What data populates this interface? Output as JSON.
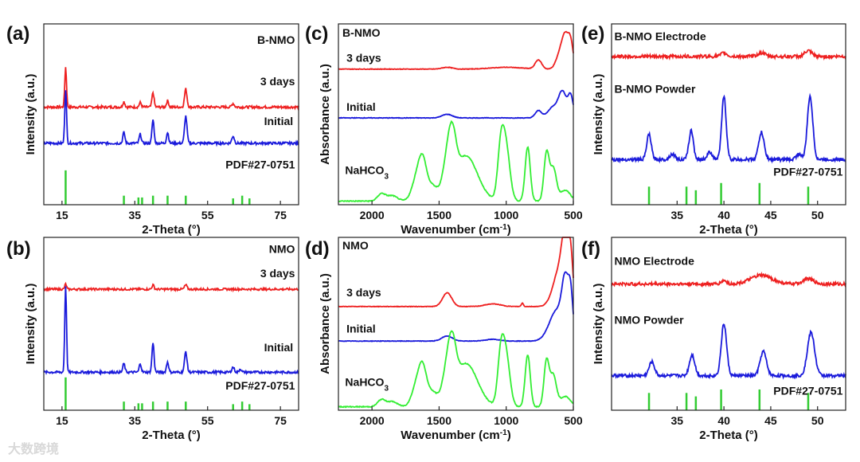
{
  "watermark": "大数跨境",
  "chart_data": [
    {
      "id": "a",
      "label": "(a)",
      "type": "line",
      "xlabel": "2-Theta (°)",
      "ylabel": "Intensity (a.u.)",
      "xlim": [
        10,
        80
      ],
      "ylim": [
        0,
        100
      ],
      "xticks": [
        15,
        35,
        55,
        75
      ],
      "reverse_x": false,
      "title": "B-NMO",
      "series": [
        {
          "name": "3 days",
          "color": "#ee2020",
          "baseline": 54,
          "noise": 0.7,
          "peaks": [
            [
              16,
              22,
              0.25
            ],
            [
              32,
              3,
              0.3
            ],
            [
              36.5,
              2.5,
              0.3
            ],
            [
              40,
              8,
              0.3
            ],
            [
              44,
              3.5,
              0.3
            ],
            [
              49,
              10,
              0.35
            ],
            [
              62,
              2,
              0.35
            ]
          ]
        },
        {
          "name": "Initial",
          "color": "#1a1adb",
          "baseline": 34,
          "noise": 0.7,
          "peaks": [
            [
              16,
              30,
              0.25
            ],
            [
              32,
              6,
              0.3
            ],
            [
              36.5,
              5,
              0.3
            ],
            [
              40,
              13,
              0.3
            ],
            [
              44,
              6,
              0.3
            ],
            [
              49,
              15,
              0.35
            ],
            [
              62,
              4,
              0.35
            ]
          ]
        }
      ],
      "reference": {
        "name": "PDF#27-0751",
        "color": "#33cc33",
        "base": 0,
        "lines": [
          [
            16,
            19
          ],
          [
            32,
            5
          ],
          [
            36,
            4
          ],
          [
            37,
            4
          ],
          [
            40,
            5
          ],
          [
            44,
            5
          ],
          [
            49,
            5
          ],
          [
            62,
            3.5
          ],
          [
            64.5,
            5
          ],
          [
            66.5,
            3.5
          ]
        ]
      },
      "annotations": [
        {
          "text": "B-NMO",
          "x": 79,
          "y": 89,
          "anchor": "end"
        },
        {
          "text": "3 days",
          "x": 79,
          "y": 66,
          "anchor": "end"
        },
        {
          "text": "Initial",
          "x": 78.5,
          "y": 44,
          "anchor": "end"
        },
        {
          "text": "PDF#27-0751",
          "x": 79,
          "y": 20,
          "anchor": "end"
        }
      ]
    },
    {
      "id": "b",
      "label": "(b)",
      "type": "line",
      "xlabel": "2-Theta (°)",
      "ylabel": "Intensity (a.u.)",
      "xlim": [
        10,
        80
      ],
      "ylim": [
        0,
        100
      ],
      "xticks": [
        15,
        35,
        55,
        75
      ],
      "reverse_x": false,
      "title": "NMO",
      "series": [
        {
          "name": "3 days",
          "color": "#ee2020",
          "baseline": 70,
          "noise": 0.6,
          "peaks": [
            [
              16,
              3,
              0.25
            ],
            [
              40,
              2.5,
              0.3
            ],
            [
              49,
              2.5,
              0.35
            ]
          ]
        },
        {
          "name": "Initial",
          "color": "#1a1adb",
          "baseline": 22,
          "noise": 0.7,
          "peaks": [
            [
              16,
              50,
              0.25
            ],
            [
              32,
              5,
              0.3
            ],
            [
              36.5,
              5,
              0.3
            ],
            [
              40,
              17,
              0.3
            ],
            [
              44,
              6,
              0.3
            ],
            [
              49,
              12,
              0.35
            ],
            [
              62,
              3,
              0.35
            ],
            [
              64,
              2,
              0.3
            ]
          ]
        }
      ],
      "reference": {
        "name": "PDF#27-0751",
        "color": "#33cc33",
        "base": 0,
        "lines": [
          [
            16,
            19
          ],
          [
            32,
            5
          ],
          [
            36,
            4
          ],
          [
            37,
            4
          ],
          [
            40,
            5
          ],
          [
            44,
            5
          ],
          [
            49,
            5
          ],
          [
            62,
            3.5
          ],
          [
            64.5,
            5
          ],
          [
            66.5,
            3.5
          ]
        ]
      },
      "annotations": [
        {
          "text": "NMO",
          "x": 79,
          "y": 91,
          "anchor": "end"
        },
        {
          "text": "3 days",
          "x": 79,
          "y": 77,
          "anchor": "end"
        },
        {
          "text": "Initial",
          "x": 78.5,
          "y": 34,
          "anchor": "end"
        },
        {
          "text": "PDF#27-0751",
          "x": 79,
          "y": 12,
          "anchor": "end"
        }
      ]
    },
    {
      "id": "c",
      "label": "(c)",
      "type": "line",
      "xlabel": "Wavenumber (cm⁻¹)",
      "ylabel": "Absorbance (a.u.)",
      "xlim": [
        2250,
        500
      ],
      "ylim": [
        0,
        100
      ],
      "xticks": [
        2000,
        1500,
        1000,
        500
      ],
      "reverse_x": true,
      "title": "B-NMO",
      "series": [
        {
          "name": "3 days",
          "color": "#ee2020",
          "baseline": 75,
          "noise": 0.15,
          "peaks": [
            [
              1440,
              1,
              40
            ],
            [
              1000,
              1,
              120
            ],
            [
              760,
              5,
              25
            ],
            [
              560,
              16,
              25
            ],
            [
              520,
              14,
              20
            ],
            [
              600,
              8,
              30
            ]
          ]
        },
        {
          "name": "Initial",
          "color": "#1a1adb",
          "baseline": 48,
          "noise": 0.15,
          "peaks": [
            [
              1440,
              2,
              40
            ],
            [
              760,
              4,
              25
            ],
            [
              580,
              14,
              30
            ],
            [
              520,
              12,
              20
            ],
            [
              650,
              6,
              40
            ]
          ]
        },
        {
          "name": "NaHCO3",
          "color": "#33ee33",
          "baseline": 2,
          "noise": 0.25,
          "peaks": [
            [
              1930,
              4,
              30
            ],
            [
              1850,
              3,
              40
            ],
            [
              1660,
              14,
              40
            ],
            [
              1620,
              16,
              30
            ],
            [
              1550,
              8,
              40
            ],
            [
              1440,
              18,
              35
            ],
            [
              1400,
              22,
              30
            ],
            [
              1300,
              25,
              90
            ],
            [
              1040,
              28,
              25
            ],
            [
              1000,
              28,
              30
            ],
            [
              840,
              30,
              20
            ],
            [
              700,
              26,
              20
            ],
            [
              650,
              18,
              25
            ],
            [
              560,
              6,
              40
            ]
          ]
        }
      ],
      "annotations": [
        {
          "text": "B-NMO",
          "x": 2220,
          "y": 93,
          "anchor": "start"
        },
        {
          "text": "3 days",
          "x": 2190,
          "y": 79,
          "anchor": "start"
        },
        {
          "text": "Initial",
          "x": 2190,
          "y": 52,
          "anchor": "start"
        },
        {
          "text": "NaHCO",
          "sub": "3",
          "x": 2200,
          "y": 17,
          "anchor": "start"
        }
      ]
    },
    {
      "id": "d",
      "label": "(d)",
      "type": "line",
      "xlabel": "Wavenumber (cm⁻¹)",
      "ylabel": "Absorbance (a.u.)",
      "xlim": [
        2250,
        500
      ],
      "ylim": [
        0,
        100
      ],
      "xticks": [
        2000,
        1500,
        1000,
        500
      ],
      "reverse_x": true,
      "title": "NMO",
      "series": [
        {
          "name": "3 days",
          "color": "#ee2020",
          "baseline": 60,
          "noise": 0.15,
          "peaks": [
            [
              1440,
              8,
              35
            ],
            [
              1100,
              1.5,
              60
            ],
            [
              880,
              2,
              8
            ],
            [
              600,
              22,
              50
            ],
            [
              560,
              30,
              25
            ],
            [
              520,
              25,
              18
            ]
          ]
        },
        {
          "name": "Initial",
          "color": "#1a1adb",
          "baseline": 40,
          "noise": 0.15,
          "peaks": [
            [
              1440,
              3,
              40
            ],
            [
              1100,
              1,
              60
            ],
            [
              620,
              18,
              60
            ],
            [
              560,
              28,
              25
            ],
            [
              520,
              24,
              18
            ]
          ]
        },
        {
          "name": "NaHCO3",
          "color": "#33ee33",
          "baseline": 2,
          "noise": 0.25,
          "peaks": [
            [
              1930,
              4,
              30
            ],
            [
              1850,
              3,
              40
            ],
            [
              1660,
              14,
              40
            ],
            [
              1620,
              16,
              30
            ],
            [
              1550,
              8,
              40
            ],
            [
              1440,
              18,
              35
            ],
            [
              1400,
              22,
              30
            ],
            [
              1300,
              25,
              90
            ],
            [
              1040,
              28,
              25
            ],
            [
              1000,
              28,
              30
            ],
            [
              840,
              30,
              20
            ],
            [
              700,
              26,
              20
            ],
            [
              650,
              18,
              25
            ],
            [
              560,
              6,
              40
            ]
          ]
        }
      ],
      "annotations": [
        {
          "text": "NMO",
          "x": 2220,
          "y": 93,
          "anchor": "start"
        },
        {
          "text": "3 days",
          "x": 2190,
          "y": 66,
          "anchor": "start"
        },
        {
          "text": "Initial",
          "x": 2190,
          "y": 45,
          "anchor": "start"
        },
        {
          "text": "NaHCO",
          "sub": "3",
          "x": 2200,
          "y": 14,
          "anchor": "start"
        }
      ]
    },
    {
      "id": "e",
      "label": "(e)",
      "type": "line",
      "xlabel": "2-Theta (°)",
      "ylabel": "Intensity (a.u.)",
      "xlim": [
        28,
        53
      ],
      "ylim": [
        0,
        100
      ],
      "xticks": [
        35,
        40,
        45,
        50
      ],
      "reverse_x": false,
      "title": "B-NMO Electrode",
      "series": [
        {
          "name": "B-NMO Electrode",
          "color": "#ee2020",
          "baseline": 82,
          "noise": 0.9,
          "peaks": [
            [
              40,
              2,
              0.3
            ],
            [
              44,
              2,
              0.4
            ],
            [
              49,
              3,
              0.4
            ]
          ]
        },
        {
          "name": "B-NMO Powder",
          "color": "#1a1adb",
          "baseline": 25,
          "noise": 0.9,
          "peaks": [
            [
              32,
              14,
              0.25
            ],
            [
              34.5,
              3,
              0.3
            ],
            [
              36.5,
              16,
              0.25
            ],
            [
              38.5,
              4,
              0.3
            ],
            [
              40,
              35,
              0.25
            ],
            [
              44,
              15,
              0.3
            ],
            [
              48,
              3,
              0.3
            ],
            [
              49.2,
              35,
              0.3
            ]
          ]
        }
      ],
      "reference": {
        "name": "PDF#27-0751",
        "color": "#33cc33",
        "base": 0,
        "lines": [
          [
            32,
            10
          ],
          [
            36,
            10
          ],
          [
            37,
            8
          ],
          [
            39.7,
            12
          ],
          [
            43.8,
            12
          ],
          [
            49,
            10
          ]
        ]
      },
      "annotations": [
        {
          "text": "B-NMO Electrode",
          "x": 28.3,
          "y": 91,
          "anchor": "start"
        },
        {
          "text": "B-NMO Powder",
          "x": 28.3,
          "y": 62,
          "anchor": "start"
        },
        {
          "text": "PDF#27-0751",
          "x": 52.7,
          "y": 16,
          "anchor": "end"
        }
      ]
    },
    {
      "id": "f",
      "label": "(f)",
      "type": "line",
      "xlabel": "2-Theta (°)",
      "ylabel": "Intensity (a.u.)",
      "xlim": [
        28,
        53
      ],
      "ylim": [
        0,
        100
      ],
      "xticks": [
        35,
        40,
        45,
        50
      ],
      "reverse_x": false,
      "title": "NMO Electrode",
      "series": [
        {
          "name": "NMO Electrode",
          "color": "#ee2020",
          "baseline": 73,
          "noise": 0.9,
          "peaks": [
            [
              40,
              2,
              0.3
            ],
            [
              44,
              5,
              1.2
            ],
            [
              49,
              3,
              0.6
            ]
          ]
        },
        {
          "name": "NMO Powder",
          "color": "#1a1adb",
          "baseline": 20,
          "noise": 0.9,
          "peaks": [
            [
              32.3,
              8,
              0.3
            ],
            [
              36.6,
              12,
              0.3
            ],
            [
              40,
              30,
              0.3
            ],
            [
              44.2,
              14,
              0.35
            ],
            [
              49.3,
              25,
              0.4
            ]
          ]
        }
      ],
      "reference": {
        "name": "PDF#27-0751",
        "color": "#33cc33",
        "base": 0,
        "lines": [
          [
            32,
            10
          ],
          [
            36,
            10
          ],
          [
            37,
            8
          ],
          [
            39.7,
            12
          ],
          [
            43.8,
            12
          ],
          [
            49,
            10
          ]
        ]
      },
      "annotations": [
        {
          "text": "NMO Electrode",
          "x": 28.3,
          "y": 84,
          "anchor": "start"
        },
        {
          "text": "NMO Powder",
          "x": 28.3,
          "y": 50,
          "anchor": "start"
        },
        {
          "text": "PDF#27-0751",
          "x": 52.7,
          "y": 9,
          "anchor": "end"
        }
      ]
    }
  ]
}
